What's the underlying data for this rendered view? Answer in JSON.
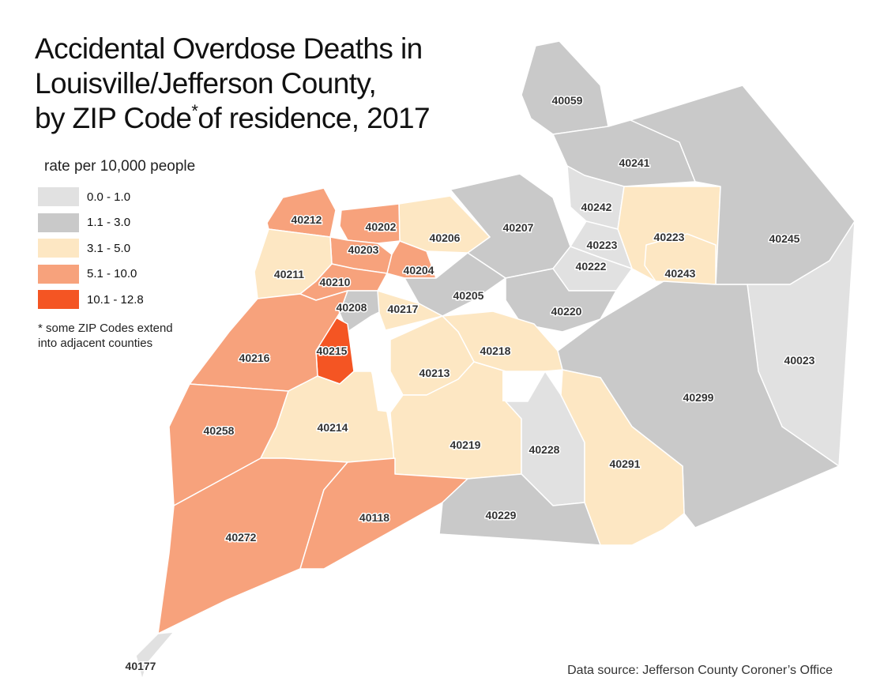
{
  "title": {
    "line1": "Accidental Overdose Deaths in",
    "line2": "Louisville/Jefferson County,",
    "line3_prefix": "by ZIP Code",
    "line3_mark": "*",
    "line3_suffix": "of residence, 2017"
  },
  "legend": {
    "title": "rate per 10,000 people",
    "bins": [
      {
        "label": "0.0 - 1.0",
        "color": "#e1e1e1"
      },
      {
        "label": "1.1 - 3.0",
        "color": "#c9c9c9"
      },
      {
        "label": "3.1 - 5.0",
        "color": "#fde7c3"
      },
      {
        "label": "5.1 - 10.0",
        "color": "#f7a27c"
      },
      {
        "label": "10.1 - 12.8",
        "color": "#f45523"
      }
    ]
  },
  "note": "* some ZIP Codes extend into adjacent counties",
  "source": "Data source: Jefferson County Coroner’s Office",
  "zip_codes": [
    {
      "zip": "40059",
      "bin": 1
    },
    {
      "zip": "40241",
      "bin": 1
    },
    {
      "zip": "40242",
      "bin": 0
    },
    {
      "zip": "40223",
      "bin": 2
    },
    {
      "zip": "40223",
      "bin": 0
    },
    {
      "zip": "40222",
      "bin": 0
    },
    {
      "zip": "40245",
      "bin": 1
    },
    {
      "zip": "40243",
      "bin": 2
    },
    {
      "zip": "40023",
      "bin": 0
    },
    {
      "zip": "40207",
      "bin": 1
    },
    {
      "zip": "40206",
      "bin": 2
    },
    {
      "zip": "40202",
      "bin": 3
    },
    {
      "zip": "40212",
      "bin": 3
    },
    {
      "zip": "40203",
      "bin": 3
    },
    {
      "zip": "40204",
      "bin": 3
    },
    {
      "zip": "40211",
      "bin": 2
    },
    {
      "zip": "40210",
      "bin": 3
    },
    {
      "zip": "40208",
      "bin": 1
    },
    {
      "zip": "40205",
      "bin": 1
    },
    {
      "zip": "40217",
      "bin": 2
    },
    {
      "zip": "40220",
      "bin": 1
    },
    {
      "zip": "40215",
      "bin": 4
    },
    {
      "zip": "40216",
      "bin": 3
    },
    {
      "zip": "40218",
      "bin": 2
    },
    {
      "zip": "40213",
      "bin": 2
    },
    {
      "zip": "40299",
      "bin": 1
    },
    {
      "zip": "40258",
      "bin": 3
    },
    {
      "zip": "40214",
      "bin": 2
    },
    {
      "zip": "40219",
      "bin": 2
    },
    {
      "zip": "40228",
      "bin": 0
    },
    {
      "zip": "40291",
      "bin": 2
    },
    {
      "zip": "40272",
      "bin": 3
    },
    {
      "zip": "40118",
      "bin": 3
    },
    {
      "zip": "40229",
      "bin": 1
    },
    {
      "zip": "40177",
      "bin": 0
    }
  ]
}
